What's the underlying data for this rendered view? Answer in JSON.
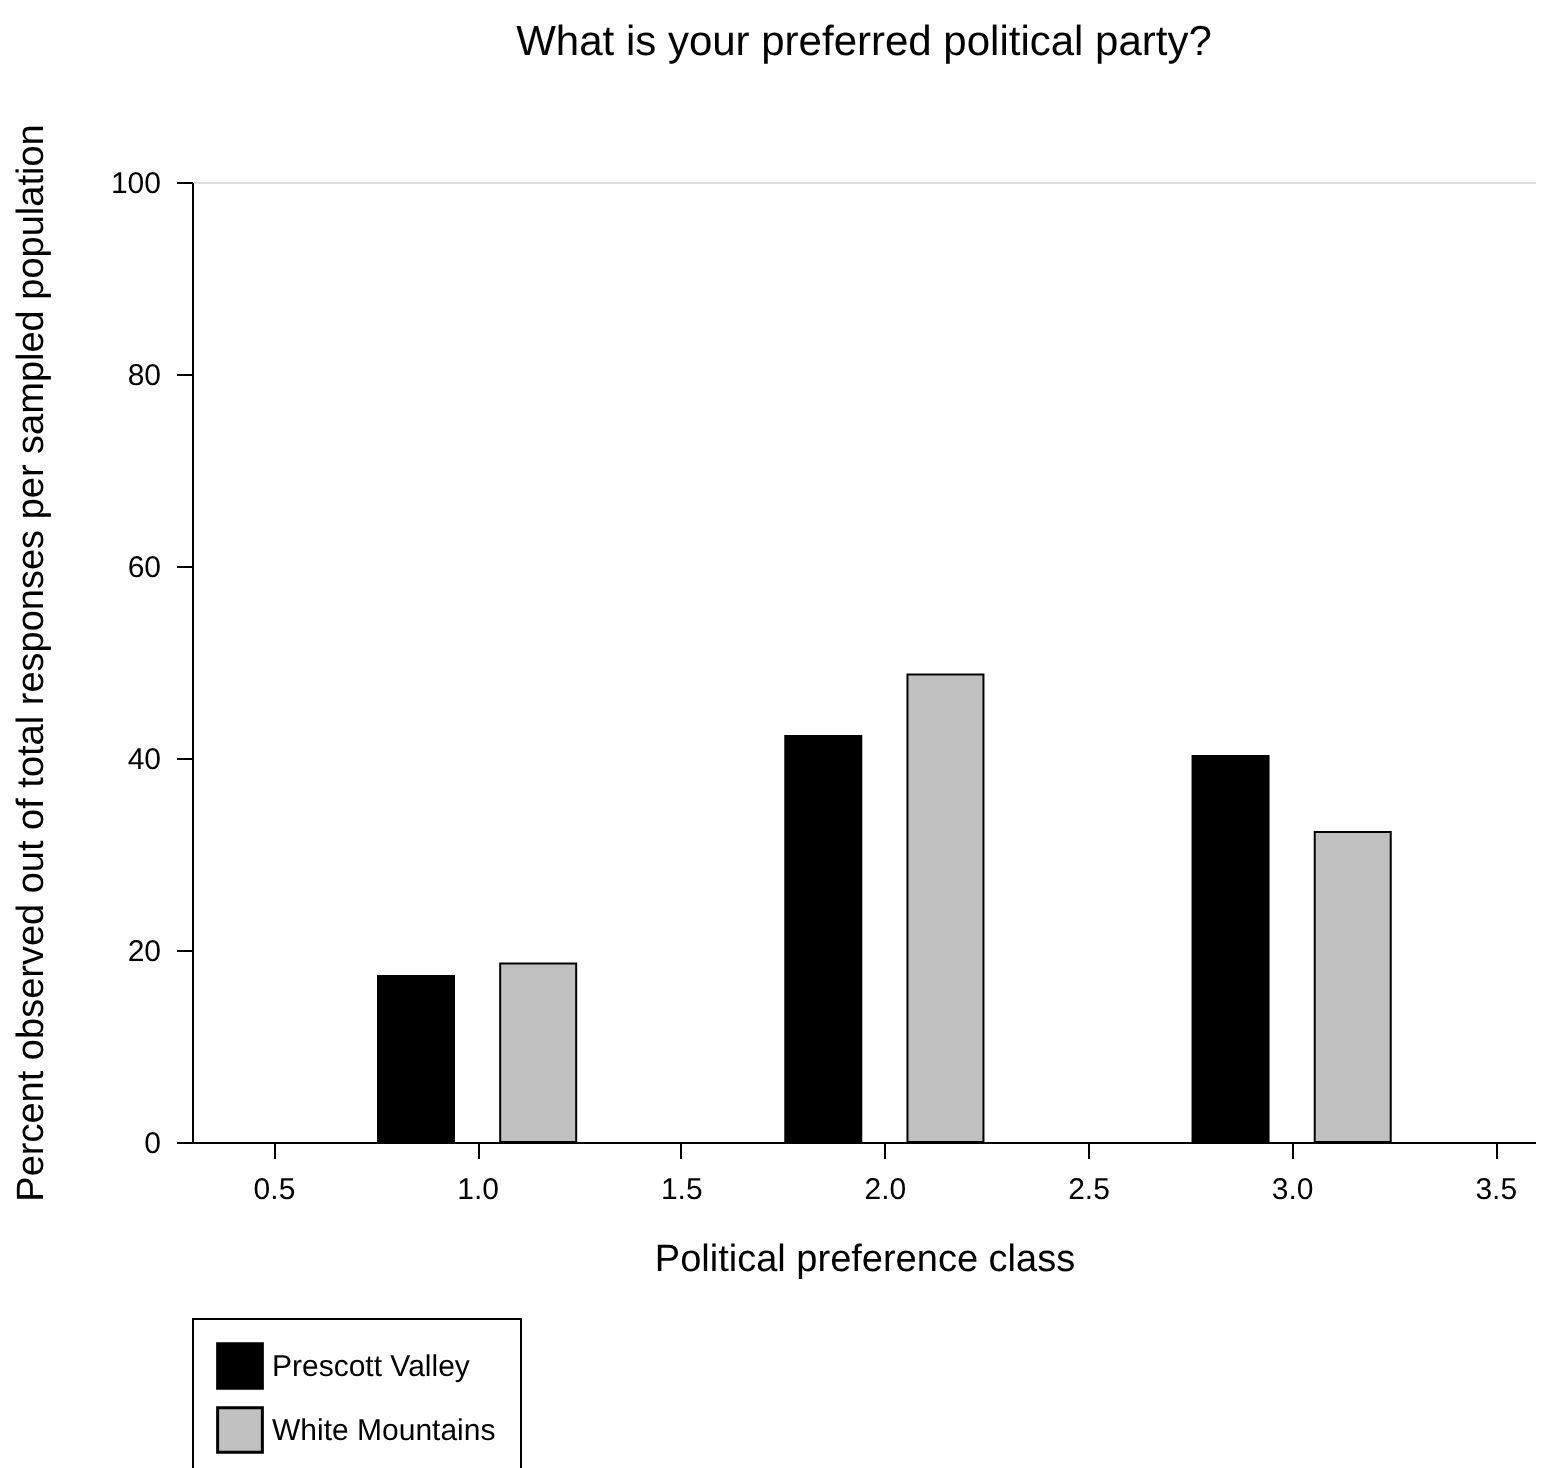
{
  "chart_data": {
    "type": "bar",
    "title": "What is your preferred political party?",
    "xlabel": "Political preference class",
    "ylabel": "Percent observed out of total responses per sampled population",
    "series": [
      {
        "name": "Prescott Valley",
        "color": "#000000",
        "x": [
          0.85,
          1.85,
          2.85
        ],
        "values": [
          17.3,
          42.3,
          40.2
        ]
      },
      {
        "name": "White Mountains",
        "color": "#c0c0c0",
        "x": [
          1.15,
          2.15,
          3.15
        ],
        "values": [
          18.6,
          48.7,
          32.3
        ]
      }
    ],
    "xlim": [
      0.3,
      3.6
    ],
    "xticks": [
      0.5,
      {
        "value": 1,
        "label": "1.0"
      },
      1.5,
      {
        "value": 2,
        "label": "2.0"
      },
      2.5,
      {
        "value": 3,
        "label": "3.0"
      },
      3.5
    ],
    "ylim": [
      0,
      100
    ],
    "yticks": [
      0,
      20,
      40,
      60,
      80,
      100
    ],
    "legend": "bottom left"
  }
}
